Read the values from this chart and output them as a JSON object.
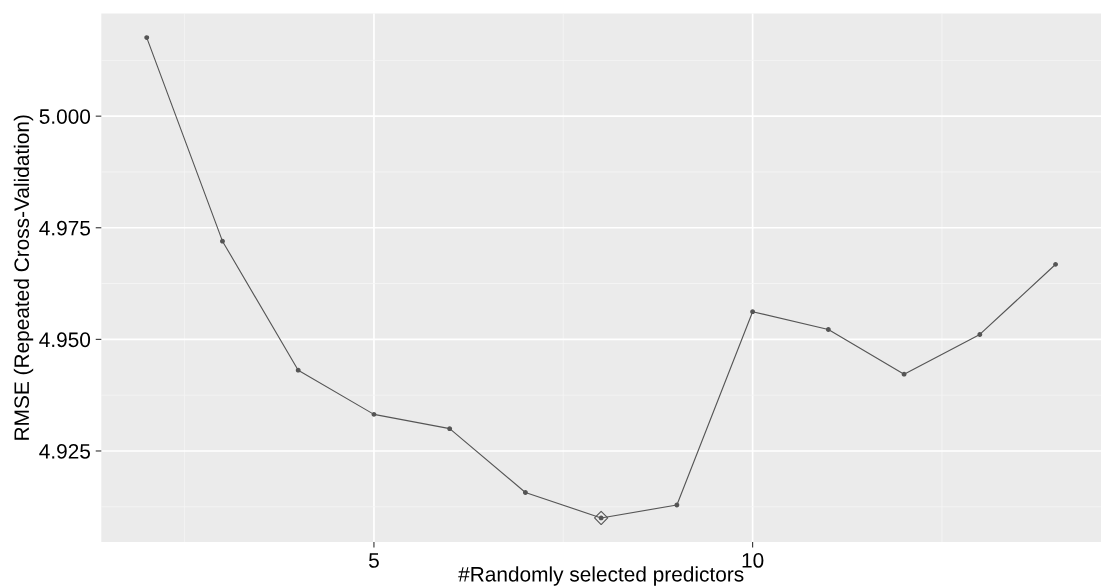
{
  "chart_data": {
    "type": "line",
    "xlabel": "#Randomly selected predictors",
    "ylabel": "RMSE (Repeated Cross-Validation)",
    "x": [
      2,
      3,
      4,
      5,
      6,
      7,
      8,
      9,
      10,
      11,
      12,
      13,
      14
    ],
    "series": [
      {
        "color": "#555555",
        "values": [
          5.0176,
          4.972,
          4.9431,
          4.9332,
          4.93,
          4.9157,
          4.91,
          4.9129,
          4.9562,
          4.9522,
          4.9422,
          4.9511,
          4.9668
        ],
        "marker": "circle"
      },
      {
        "type": "scatter",
        "x": [
          8
        ],
        "color": "#555555",
        "values": [
          4.91
        ],
        "marker": "diamond"
      }
    ],
    "xlim": [
      1.4,
      14.6
    ],
    "ylim": [
      4.9046,
      5.023
    ],
    "xticks": [
      5,
      10
    ],
    "yticks": [
      {
        "value": 4.925,
        "label": "4.925"
      },
      {
        "value": 4.95,
        "label": "4.950"
      },
      {
        "value": 4.975,
        "label": "4.975"
      },
      {
        "value": 5.0,
        "label": "5.000"
      }
    ],
    "grid": true,
    "line_style": "solid"
  }
}
